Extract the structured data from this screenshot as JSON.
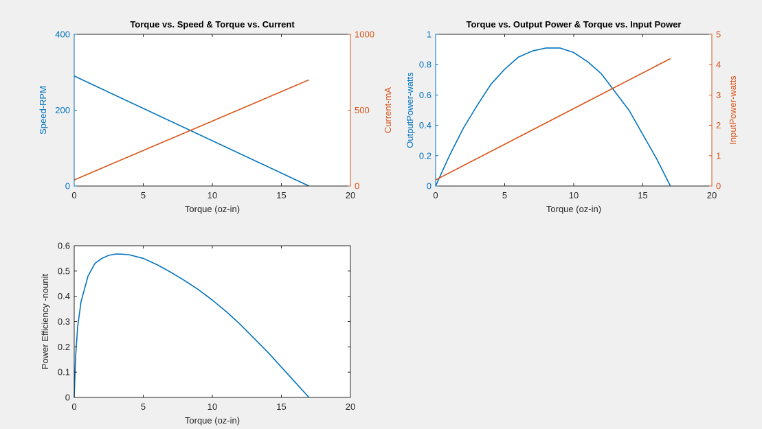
{
  "colors": {
    "background": "#f0f0f0",
    "axes_background": "#ffffff",
    "axes_frame": "#262626",
    "blue": "#0072bd",
    "orange": "#d95319"
  },
  "chart_data": [
    {
      "type": "line",
      "title": "Torque vs. Speed & Torque vs. Current",
      "xlabel": "Torque (oz-in)",
      "xlim": [
        0,
        20
      ],
      "xticks": [
        0,
        5,
        10,
        15,
        20
      ],
      "ylabel_left": "Speed-RPM",
      "ylim_left": [
        0,
        400
      ],
      "yticks_left": [
        0,
        200,
        400
      ],
      "ylabel_right": "Current-mA",
      "ylim_right": [
        0,
        1000
      ],
      "yticks_right": [
        0,
        500,
        1000
      ],
      "grid": false,
      "series": [
        {
          "axis": "left",
          "color": "#0072bd",
          "x": [
            0,
            17
          ],
          "y": [
            290,
            0
          ]
        },
        {
          "axis": "right",
          "color": "#d95319",
          "x": [
            0,
            17
          ],
          "y": [
            40,
            700
          ]
        }
      ]
    },
    {
      "type": "line",
      "title": "Torque vs. Output Power & Torque vs. Input Power",
      "xlabel": "Torque (oz-in)",
      "xlim": [
        0,
        20
      ],
      "xticks": [
        0,
        5,
        10,
        15,
        20
      ],
      "ylabel_left": "OutputPower-watts",
      "ylim_left": [
        0,
        1
      ],
      "yticks_left": [
        0,
        0.2,
        0.4,
        0.6,
        0.8,
        1
      ],
      "ylabel_right": "InputPower-watts",
      "ylim_right": [
        0,
        5
      ],
      "yticks_right": [
        0,
        1,
        2,
        3,
        4,
        5
      ],
      "grid": false,
      "series": [
        {
          "axis": "left",
          "color": "#0072bd",
          "x": [
            0,
            1,
            2,
            3,
            4,
            5,
            6,
            7,
            8,
            8.5,
            9,
            10,
            11,
            12,
            13,
            14,
            15,
            16,
            17
          ],
          "y": [
            0,
            0.2,
            0.38,
            0.53,
            0.67,
            0.77,
            0.85,
            0.89,
            0.91,
            0.91,
            0.91,
            0.88,
            0.82,
            0.74,
            0.62,
            0.5,
            0.34,
            0.18,
            0
          ]
        },
        {
          "axis": "right",
          "color": "#d95319",
          "x": [
            0,
            17
          ],
          "y": [
            0.2,
            4.2
          ]
        }
      ]
    },
    {
      "type": "line",
      "title": "",
      "xlabel": "Torque (oz-in)",
      "xlim": [
        0,
        20
      ],
      "xticks": [
        0,
        5,
        10,
        15,
        20
      ],
      "ylabel_left": "Power Efficiency -nounit",
      "ylim_left": [
        0,
        0.6
      ],
      "yticks_left": [
        0,
        0.1,
        0.2,
        0.3,
        0.4,
        0.5,
        0.6
      ],
      "grid": false,
      "series": [
        {
          "axis": "left",
          "color": "#0072bd",
          "x": [
            0,
            0.1,
            0.25,
            0.5,
            1,
            1.5,
            2,
            2.5,
            3,
            3.4,
            4,
            5,
            6,
            7,
            8,
            9,
            10,
            11,
            12,
            13,
            14,
            15,
            16,
            17
          ],
          "y": [
            0,
            0.16,
            0.28,
            0.38,
            0.48,
            0.53,
            0.55,
            0.562,
            0.567,
            0.567,
            0.564,
            0.55,
            0.525,
            0.495,
            0.462,
            0.426,
            0.385,
            0.34,
            0.29,
            0.235,
            0.18,
            0.12,
            0.06,
            0
          ]
        }
      ]
    }
  ]
}
